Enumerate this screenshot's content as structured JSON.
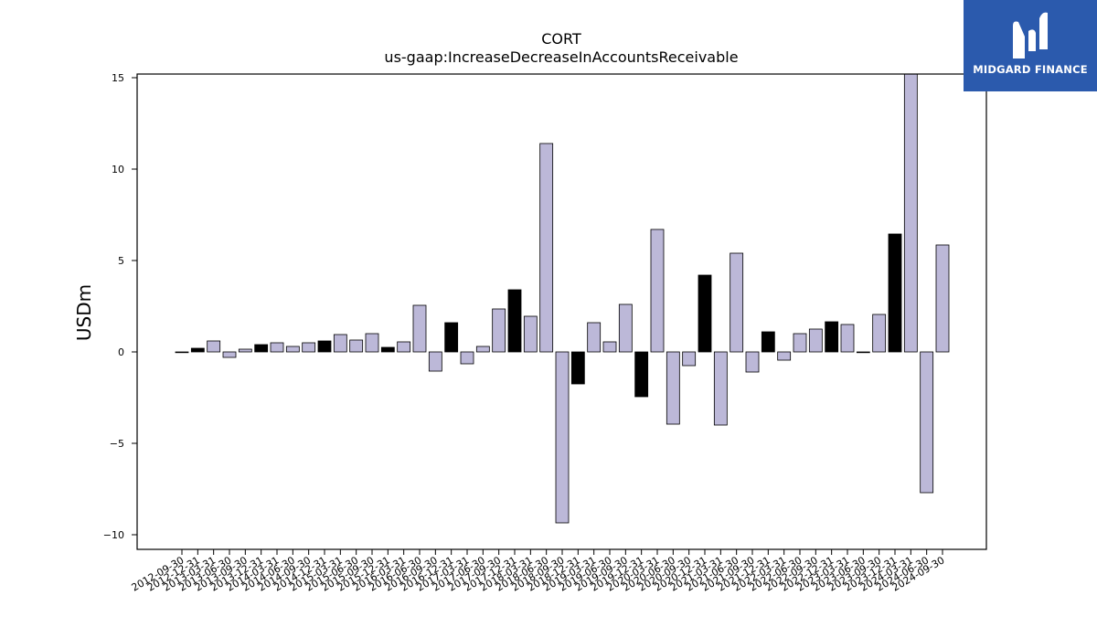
{
  "chart_data": {
    "type": "bar",
    "title": "CORT",
    "subtitle": "us-gaap:IncreaseDecreaseInAccountsReceivable",
    "xlabel": "",
    "ylabel": "USDm",
    "ylim": [
      -10.5,
      15.2
    ],
    "yticks": [
      -10,
      -5,
      0,
      5,
      10,
      15
    ],
    "ytick_labels": [
      "−10",
      "−5",
      "0",
      "5",
      "10",
      "15"
    ],
    "grid": false,
    "legend": "none",
    "colors": {
      "default": "#bcb8d8",
      "q4": "#000000",
      "edge": "#000000"
    },
    "categories": [
      "2012-09-30",
      "2012-12-31",
      "2013-03-31",
      "2013-06-30",
      "2013-09-30",
      "2013-12-31",
      "2014-03-31",
      "2014-06-30",
      "2014-09-30",
      "2014-12-31",
      "2015-03-31",
      "2015-06-30",
      "2015-09-30",
      "2015-12-31",
      "2016-03-31",
      "2016-06-30",
      "2016-09-30",
      "2016-12-31",
      "2017-03-31",
      "2017-06-30",
      "2017-09-30",
      "2017-12-31",
      "2018-03-31",
      "2018-06-30",
      "2018-09-30",
      "2018-12-31",
      "2019-03-31",
      "2019-06-30",
      "2019-09-30",
      "2019-12-31",
      "2020-03-31",
      "2020-06-30",
      "2020-09-30",
      "2020-12-31",
      "2021-03-31",
      "2021-06-30",
      "2021-09-30",
      "2021-12-31",
      "2022-03-31",
      "2022-06-30",
      "2022-09-30",
      "2022-12-31",
      "2023-03-31",
      "2023-06-30",
      "2023-09-30",
      "2023-12-31",
      "2024-03-31",
      "2024-06-30",
      "2024-09-30"
    ],
    "values": [
      0.0,
      0.2,
      0.6,
      -0.3,
      0.15,
      0.4,
      0.5,
      0.3,
      0.5,
      0.6,
      0.95,
      0.65,
      1.0,
      0.25,
      0.55,
      2.55,
      -1.05,
      1.6,
      -0.65,
      0.3,
      2.35,
      3.4,
      1.95,
      11.4,
      -9.35,
      -1.75,
      1.6,
      0.55,
      2.6,
      -2.45,
      6.7,
      -3.95,
      -0.75,
      4.2,
      -4.0,
      5.4,
      -1.1,
      1.1,
      -0.45,
      1.0,
      1.25,
      1.65,
      1.5,
      0.0,
      2.05,
      6.45,
      15.2,
      -7.7,
      5.85
    ],
    "highlight": [
      false,
      true,
      false,
      false,
      false,
      true,
      false,
      false,
      false,
      true,
      false,
      false,
      false,
      true,
      false,
      false,
      false,
      true,
      false,
      false,
      false,
      true,
      false,
      false,
      false,
      true,
      false,
      false,
      false,
      true,
      false,
      false,
      false,
      true,
      false,
      false,
      false,
      true,
      false,
      false,
      false,
      true,
      false,
      false,
      false,
      true,
      false,
      false,
      false
    ]
  },
  "logo": {
    "name": "MIDGARD FINANCE",
    "mark": "M"
  }
}
